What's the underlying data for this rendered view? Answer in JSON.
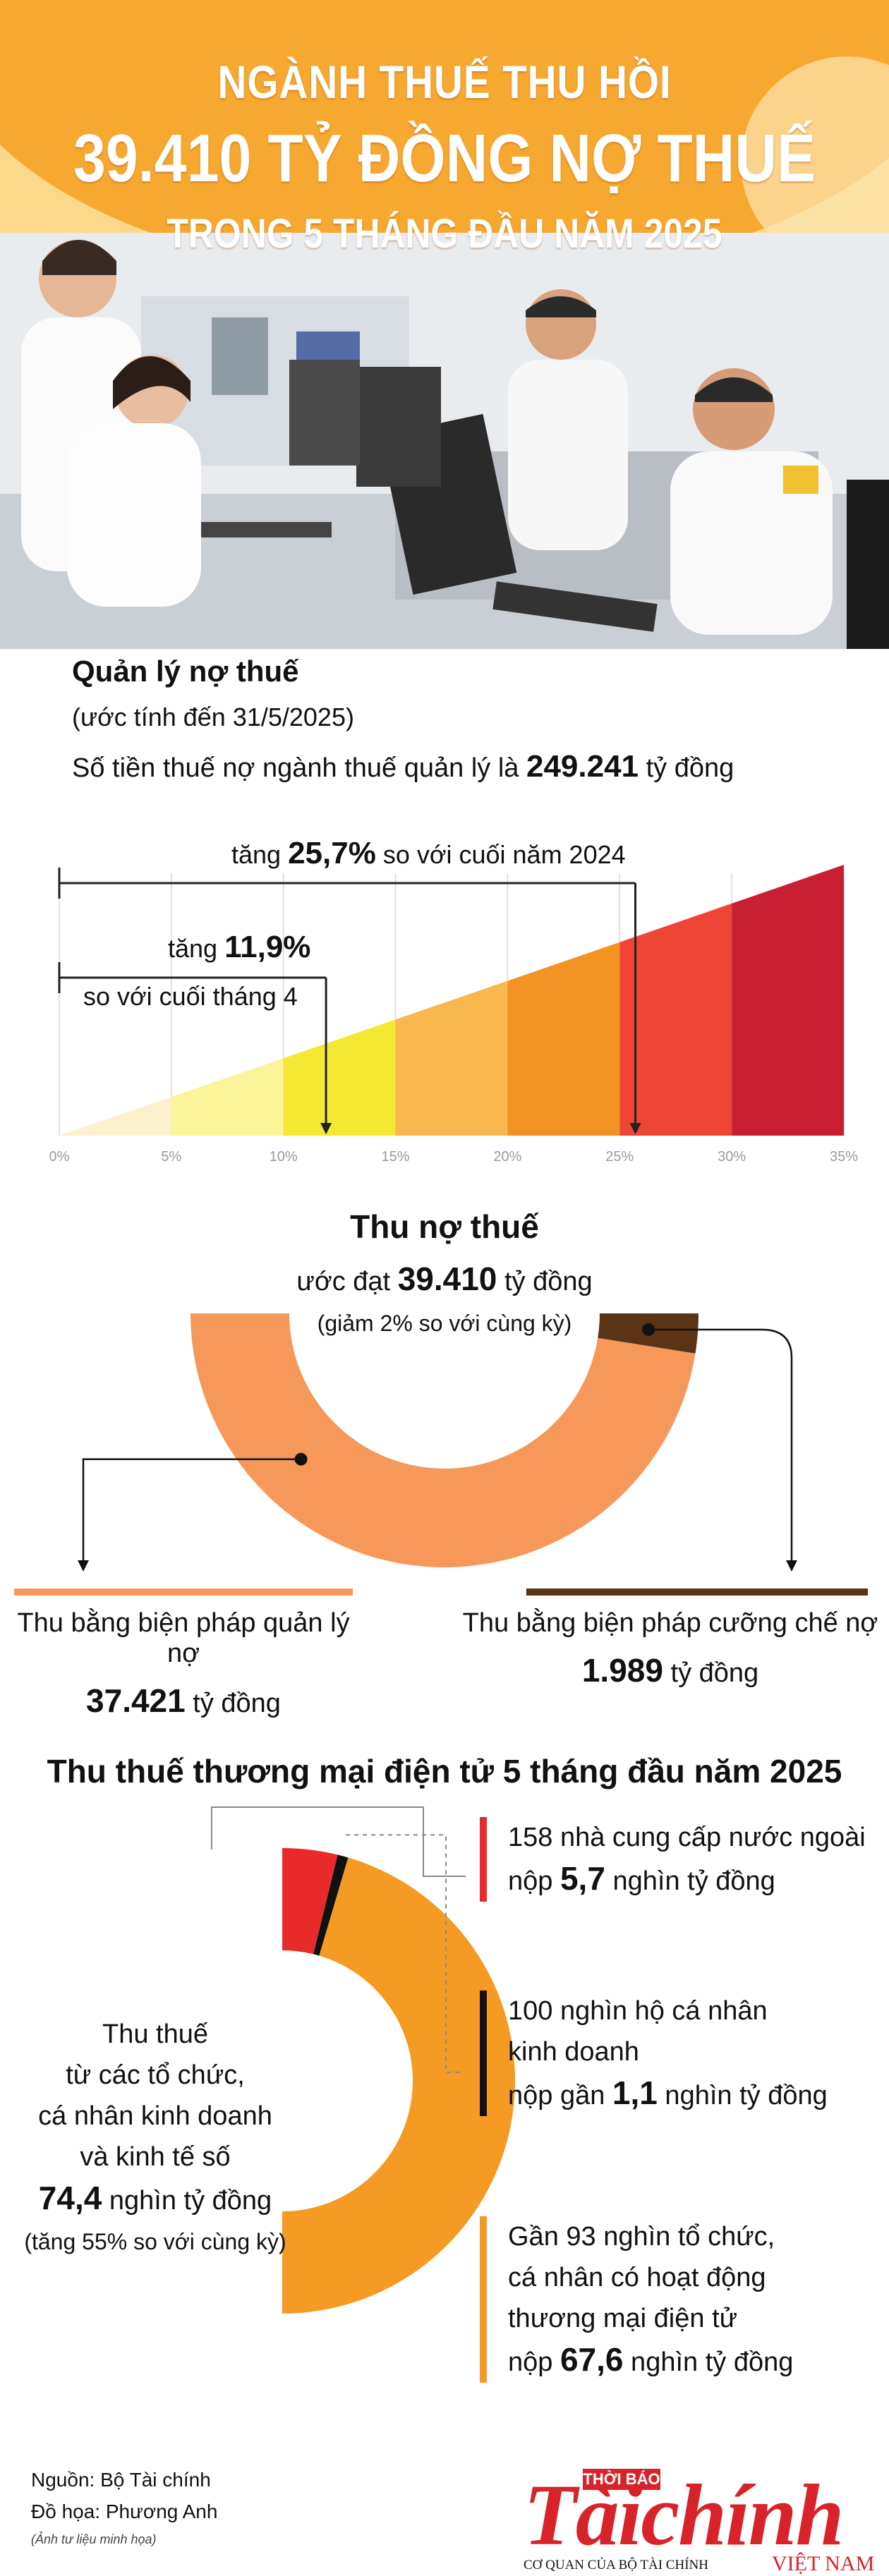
{
  "header": {
    "line1": "NGÀNH THUẾ THU HỒI",
    "line2": "39.410 TỶ ĐỒNG NỢ THUẾ",
    "line3": "TRONG 5 THÁNG ĐẦU NĂM 2025"
  },
  "debt_management": {
    "title": "Quản lý nợ thuế",
    "subtitle": "(ước tính đến 31/5/2025)",
    "line_prefix": "Số tiền thuế nợ ngành thuế quản lý là ",
    "amount": "249.241",
    "line_suffix": " tỷ đồng",
    "ann1_prefix": "tăng ",
    "ann1_value": "25,7%",
    "ann1_suffix": " so với cuối năm 2024",
    "ann2_prefix": "tăng ",
    "ann2_value": "11,9%",
    "ann2_suffix": "so với cuối tháng 4"
  },
  "debt_collection": {
    "title": "Thu nợ thuế",
    "line_prefix": "ước đạt ",
    "amount": "39.410",
    "line_suffix": " tỷ đồng",
    "note": "(giảm 2% so với cùng kỳ)",
    "left_label": "Thu bằng biện pháp quản lý nợ",
    "left_value": "37.421",
    "left_unit": " tỷ đồng",
    "right_label": "Thu bằng biện pháp cưỡng chế nợ",
    "right_value": "1.989",
    "right_unit": " tỷ đồng"
  },
  "ecommerce": {
    "title": "Thu thuế thương mại điện tử 5 tháng đầu năm 2025",
    "left_l1": "Thu thuế",
    "left_l2": "từ các tổ chức,",
    "left_l3": "cá nhân kinh doanh",
    "left_l4": "và kinh tế số",
    "left_value": "74,4",
    "left_unit": " nghìn tỷ đồng",
    "left_note": "(tăng 55% so với cùng kỳ)",
    "item1_l1": "158 nhà cung cấp nước ngoài",
    "item1_l2_prefix": "nộp ",
    "item1_value": "5,7",
    "item1_l2_suffix": " nghìn tỷ đồng",
    "item2_l1": "100 nghìn hộ cá nhân",
    "item2_l2": "kinh doanh",
    "item2_l3_prefix": "nộp gần ",
    "item2_value": "1,1",
    "item2_l3_suffix": " nghìn tỷ đồng",
    "item3_l1": "Gần 93 nghìn tổ chức,",
    "item3_l2": "cá nhân có hoạt động",
    "item3_l3": "thương mại điện tử",
    "item3_l4_prefix": "nộp ",
    "item3_value": "67,6",
    "item3_l4_suffix": " nghìn tỷ đồng"
  },
  "footer": {
    "source": "Nguồn: Bộ Tài chính",
    "design": "Đồ họa: Phương Anh",
    "photo_note": "(Ảnh tư liệu minh họa)"
  },
  "logo": {
    "top": "THỜI BÁO",
    "main": "Tàichính",
    "sub": "CƠ QUAN CỦA BỘ TÀI CHÍNH",
    "country": "VIỆT NAM"
  },
  "colors": {
    "orange_light": "#f7a830",
    "orange_bg": "#fcd98a",
    "donut_orange": "#f5985a",
    "donut_brown": "#5a3415",
    "ecom_orange": "#f59a23",
    "ecom_red": "#e82b2a",
    "ecom_black": "#111111",
    "bar_colors": [
      "#fdf0cc",
      "#fbf49a",
      "#f5e832",
      "#f9b84e",
      "#f39323",
      "#ee4536",
      "#c81f33"
    ]
  },
  "chart_data": [
    {
      "type": "area",
      "title": "Quản lý nợ thuế",
      "x": [
        0,
        5,
        10,
        15,
        20,
        25,
        30,
        35
      ],
      "tick_labels": [
        "0%",
        "5%",
        "10%",
        "15%",
        "20%",
        "25%",
        "30%",
        "35%"
      ],
      "xlim": [
        0,
        35
      ],
      "annotations": [
        {
          "label": "tăng 25,7% so với cuối năm 2024",
          "value": 25.7
        },
        {
          "label": "tăng 11,9% so với cuối tháng 4",
          "value": 11.9
        }
      ],
      "grid": true
    },
    {
      "type": "pie",
      "title": "Thu nợ thuế",
      "total": 39410,
      "unit": "tỷ đồng",
      "slices": [
        {
          "label": "Thu bằng biện pháp quản lý nợ",
          "value": 37421
        },
        {
          "label": "Thu bằng biện pháp cưỡng chế nợ",
          "value": 1989
        }
      ]
    },
    {
      "type": "pie",
      "title": "Thu thuế thương mại điện tử 5 tháng đầu năm 2025",
      "total": 74.4,
      "unit": "nghìn tỷ đồng",
      "slices": [
        {
          "label": "158 nhà cung cấp nước ngoài",
          "value": 5.7
        },
        {
          "label": "100 nghìn hộ cá nhân kinh doanh",
          "value": 1.1
        },
        {
          "label": "Gần 93 nghìn tổ chức, cá nhân có hoạt động thương mại điện tử",
          "value": 67.6
        }
      ]
    }
  ]
}
